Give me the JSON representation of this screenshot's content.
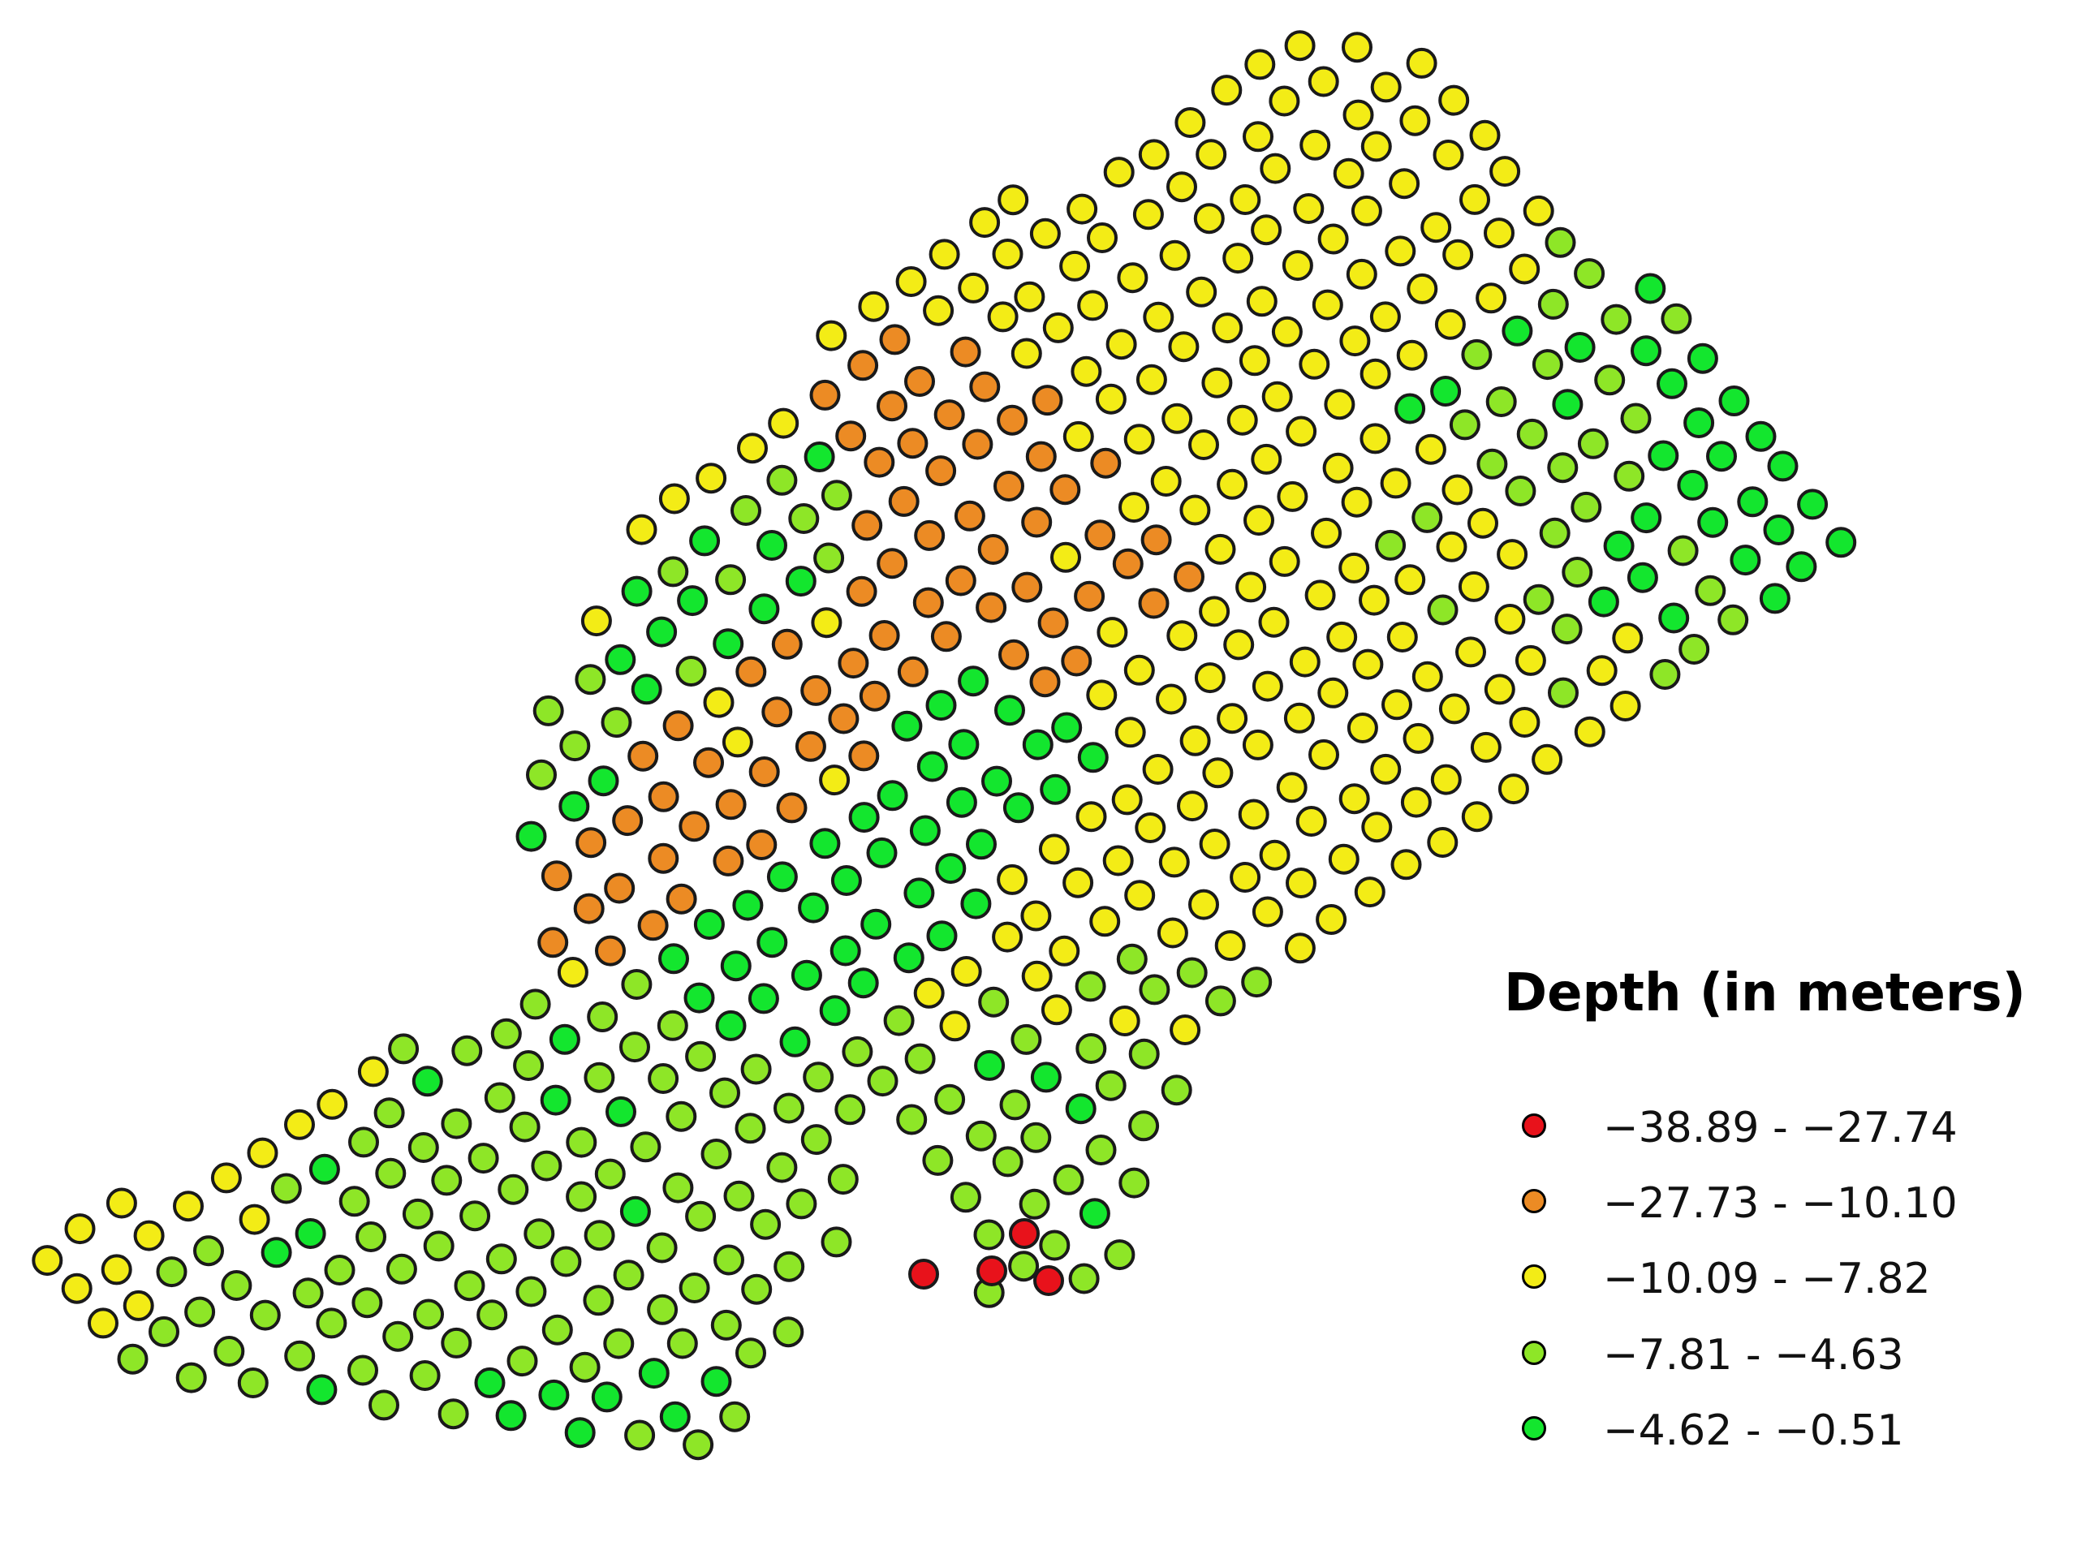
{
  "colors": {
    "class_1": "#e8121b",
    "class_2": "#ec8b24",
    "class_3": "#f3ec16",
    "class_4": "#8ee627",
    "class_5": "#13e62e",
    "outline": "#1a1a1a"
  },
  "legend": {
    "title": "Depth (in meters)",
    "classes": [
      {
        "label": "−38.89 - −27.74",
        "color": "#e8121b"
      },
      {
        "label": "−27.73 - −10.10",
        "color": "#ec8b24"
      },
      {
        "label": "−10.09 - −7.82",
        "color": "#f3ec16"
      },
      {
        "label": "−7.81 - −4.63",
        "color": "#8ee627"
      },
      {
        "label": "−4.62 - −0.51",
        "color": "#13e62e"
      }
    ]
  }
}
